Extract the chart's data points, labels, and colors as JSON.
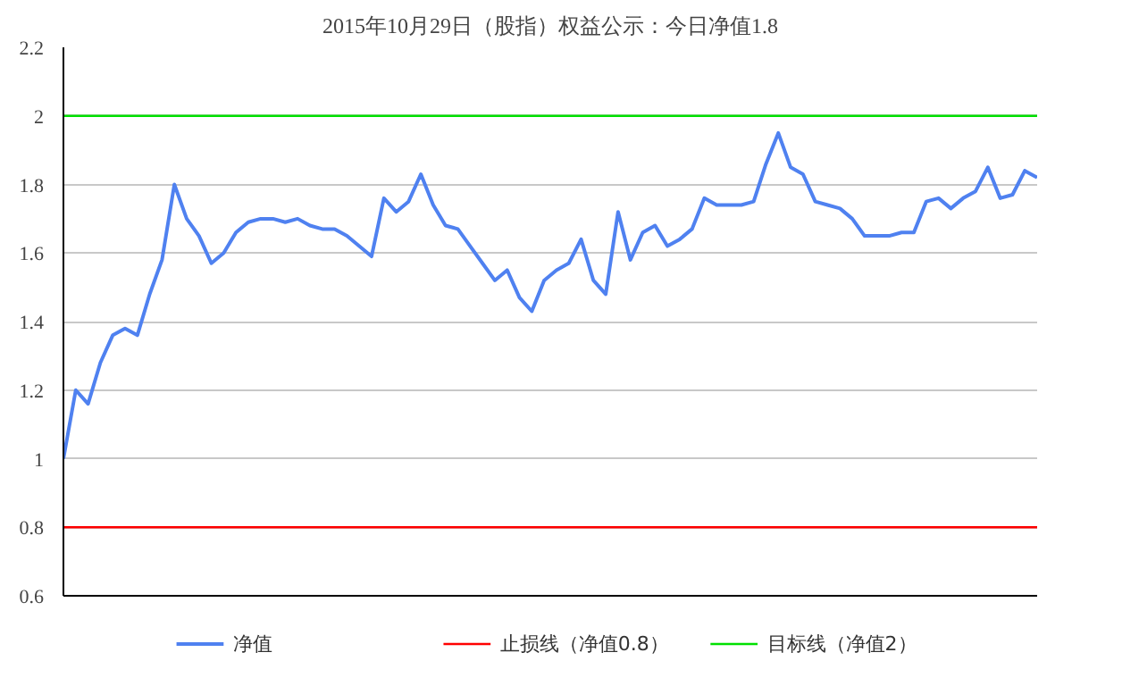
{
  "chart_data": {
    "type": "line",
    "title": "2015年10月29日（股指）权益公示：今日净值1.8",
    "categories": [
      null,
      null,
      null,
      null,
      null,
      null,
      null,
      null,
      null,
      null,
      null,
      null,
      null,
      null,
      null,
      null,
      null,
      null,
      null,
      null,
      null,
      null,
      null,
      null,
      null,
      null,
      null,
      null,
      null,
      null,
      null,
      null,
      null,
      null,
      null,
      null,
      null,
      null,
      null,
      null,
      null,
      null,
      null,
      null,
      null,
      null,
      null,
      null,
      null,
      null,
      null,
      null,
      null,
      null,
      null,
      null,
      null,
      null,
      null,
      null,
      null,
      null,
      null,
      null,
      null,
      null,
      null,
      null,
      null,
      null,
      null,
      null,
      null,
      null,
      null,
      null,
      null,
      null,
      null,
      null
    ],
    "series": [
      {
        "name": "净值",
        "color": "#4f81f0",
        "values": [
          1.0,
          1.2,
          1.16,
          1.28,
          1.36,
          1.38,
          1.36,
          1.48,
          1.58,
          1.8,
          1.7,
          1.65,
          1.57,
          1.6,
          1.66,
          1.69,
          1.7,
          1.7,
          1.69,
          1.7,
          1.68,
          1.67,
          1.67,
          1.65,
          1.62,
          1.59,
          1.76,
          1.72,
          1.75,
          1.83,
          1.74,
          1.68,
          1.67,
          1.62,
          1.57,
          1.52,
          1.55,
          1.47,
          1.43,
          1.52,
          1.55,
          1.57,
          1.64,
          1.52,
          1.48,
          1.72,
          1.58,
          1.66,
          1.68,
          1.62,
          1.64,
          1.67,
          1.76,
          1.74,
          1.74,
          1.74,
          1.75,
          1.86,
          1.95,
          1.85,
          1.83,
          1.75,
          1.74,
          1.73,
          1.7,
          1.65,
          1.65,
          1.65,
          1.66,
          1.66,
          1.75,
          1.76,
          1.73,
          1.76,
          1.78,
          1.85,
          1.76,
          1.77,
          1.84,
          1.82
        ]
      }
    ],
    "ref_lines": [
      {
        "axis": "y",
        "value": 0.8,
        "label": "止损线（净值0.8）",
        "color": "#ff0000"
      },
      {
        "axis": "y",
        "value": 2,
        "label": "目标线（净值2）",
        "color": "#00e000"
      }
    ],
    "ylim": [
      0.6,
      2.2
    ],
    "yticks": [
      0.6,
      0.8,
      1,
      1.2,
      1.4,
      1.6,
      1.8,
      2,
      2.2
    ],
    "grid": "y",
    "legend": "bottom",
    "tick_labels": "y",
    "line_style": "solid",
    "marker": "none"
  }
}
